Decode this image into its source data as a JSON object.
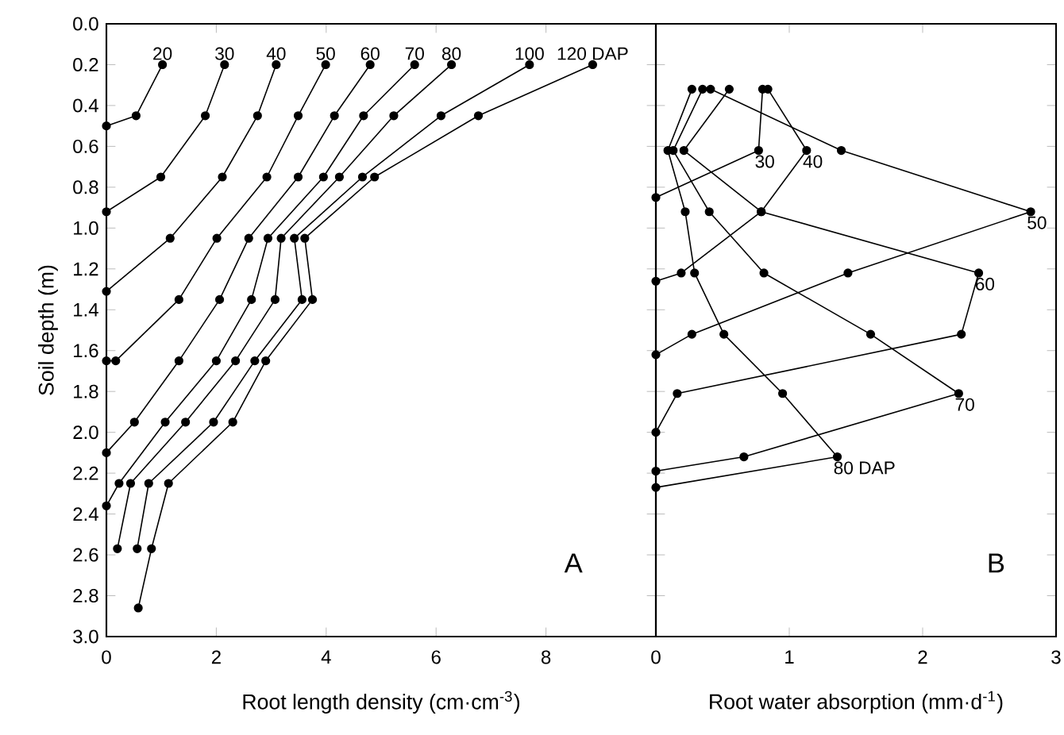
{
  "chart_data": [
    {
      "type": "line",
      "xlabel": "Root length density (cm·cm$^{-3}$)",
      "ylabel": "Soil depth (m)",
      "xlim": [
        0,
        10
      ],
      "xticks": [
        0,
        2,
        4,
        6,
        8
      ],
      "ylim": [
        3.0,
        0.0
      ],
      "yticks": [
        {
          "value": 0,
          "label": "0.0"
        },
        0.2,
        0.4,
        0.6,
        0.8,
        {
          "value": 1,
          "label": "1.0"
        },
        1.2,
        1.4,
        1.6,
        1.8,
        {
          "value": 2,
          "label": "2.0"
        },
        2.2,
        2.4,
        2.6,
        2.8,
        {
          "value": 3,
          "label": "3.0"
        }
      ],
      "marker": "circle",
      "annotations": [
        "A"
      ],
      "series": [
        {
          "name": "20",
          "color": "#000000",
          "x": [
            1.02,
            0.54,
            0
          ],
          "values": [
            0.2,
            0.45,
            0.5
          ]
        },
        {
          "name": "30",
          "color": "#000000",
          "x": [
            2.15,
            1.8,
            0.99,
            0
          ],
          "values": [
            0.2,
            0.45,
            0.75,
            0.92
          ]
        },
        {
          "name": "40",
          "color": "#000000",
          "x": [
            3.09,
            2.75,
            2.11,
            1.16,
            0
          ],
          "values": [
            0.2,
            0.45,
            0.75,
            1.05,
            1.31
          ]
        },
        {
          "name": "50",
          "color": "#000000",
          "x": [
            3.99,
            3.49,
            2.92,
            2.01,
            1.32,
            0.17,
            0
          ],
          "values": [
            0.2,
            0.45,
            0.75,
            1.05,
            1.35,
            1.65,
            1.65
          ]
        },
        {
          "name": "60",
          "color": "#000000",
          "x": [
            4.8,
            4.15,
            3.49,
            2.59,
            2.06,
            1.32,
            0.51,
            0
          ],
          "values": [
            0.2,
            0.45,
            0.75,
            1.05,
            1.35,
            1.65,
            1.95,
            2.1
          ]
        },
        {
          "name": "70",
          "color": "#000000",
          "x": [
            5.61,
            4.68,
            3.95,
            2.94,
            2.64,
            2.0,
            1.07,
            0.23,
            0
          ],
          "values": [
            0.2,
            0.45,
            0.75,
            1.05,
            1.35,
            1.65,
            1.95,
            2.25,
            2.36
          ]
        },
        {
          "name": "80",
          "color": "#000000",
          "x": [
            6.28,
            5.23,
            4.24,
            3.18,
            3.07,
            2.35,
            1.44,
            0.44,
            0.2
          ],
          "values": [
            0.2,
            0.45,
            0.75,
            1.05,
            1.35,
            1.65,
            1.95,
            2.25,
            2.57
          ]
        },
        {
          "name": "100",
          "color": "#000000",
          "x": [
            7.7,
            6.09,
            4.66,
            3.42,
            3.56,
            2.7,
            1.95,
            0.77,
            0.56
          ],
          "values": [
            0.2,
            0.45,
            0.75,
            1.05,
            1.35,
            1.65,
            1.95,
            2.25,
            2.57
          ]
        },
        {
          "name": "120 DAP",
          "color": "#000000",
          "x": [
            8.85,
            6.77,
            4.88,
            3.61,
            3.75,
            2.9,
            2.3,
            1.13,
            0.82,
            0.58
          ],
          "values": [
            0.2,
            0.45,
            0.75,
            1.05,
            1.35,
            1.65,
            1.95,
            2.25,
            2.57,
            2.86
          ]
        }
      ]
    },
    {
      "type": "line",
      "xlabel": "Root water absorption (mm·d$^{-1}$)",
      "xlim": [
        0,
        3
      ],
      "xticks": [
        0,
        1,
        2,
        3
      ],
      "ylim": [
        3.0,
        0.0
      ],
      "yticks": [
        0,
        0.2,
        0.4,
        0.6,
        0.8,
        1,
        1.2,
        1.4,
        1.6,
        1.8,
        2,
        2.2,
        2.4,
        2.6,
        2.8,
        3
      ],
      "tick_labels": "x",
      "marker": "circle",
      "annotations": [
        "B"
      ],
      "series": [
        {
          "name": "30",
          "color": "#000000",
          "x": [
            0.8,
            0.77,
            0
          ],
          "values": [
            0.32,
            0.62,
            0.85
          ]
        },
        {
          "name": "40",
          "color": "#000000",
          "x": [
            0.84,
            1.13,
            0.79,
            0.19,
            0
          ],
          "values": [
            0.32,
            0.62,
            0.92,
            1.22,
            1.26
          ]
        },
        {
          "name": "50",
          "color": "#000000",
          "x": [
            0.41,
            1.39,
            2.81,
            1.44,
            0.27,
            0
          ],
          "values": [
            0.32,
            0.62,
            0.92,
            1.22,
            1.52,
            1.62
          ]
        },
        {
          "name": "60",
          "color": "#000000",
          "x": [
            0.55,
            0.21,
            0.79,
            2.42,
            2.29,
            0.16,
            0
          ],
          "values": [
            0.32,
            0.62,
            0.92,
            1.22,
            1.52,
            1.81,
            2.0
          ]
        },
        {
          "name": "70",
          "color": "#000000",
          "x": [
            0.35,
            0.13,
            0.4,
            0.81,
            1.61,
            2.27,
            0.66,
            0
          ],
          "values": [
            0.32,
            0.62,
            0.92,
            1.22,
            1.52,
            1.81,
            2.12,
            2.19
          ]
        },
        {
          "name": "80 DAP",
          "color": "#000000",
          "x": [
            0.27,
            0.09,
            0.22,
            0.29,
            0.51,
            0.95,
            1.36,
            0
          ],
          "values": [
            0.32,
            0.62,
            0.92,
            1.22,
            1.52,
            1.81,
            2.12,
            2.27
          ]
        }
      ]
    }
  ]
}
